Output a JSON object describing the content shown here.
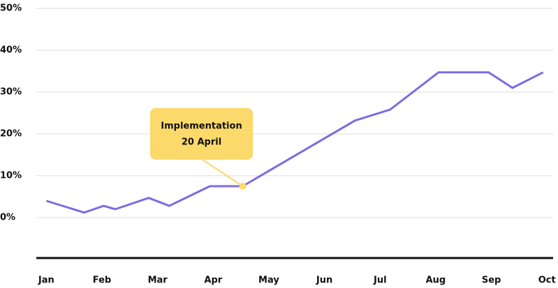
{
  "chart_data": {
    "type": "line",
    "x": [
      0,
      0.68,
      1.03,
      1.24,
      1.84,
      2.21,
      2.94,
      3.53,
      5.55,
      6.18,
      7.05,
      7.95,
      8.38,
      8.93
    ],
    "series": [
      {
        "color": "#7d6be0",
        "values": [
          4,
          1.2,
          2.8,
          2,
          4.7,
          2.8,
          7.5,
          7.5,
          23.2,
          25.8,
          34.7,
          34.7,
          31,
          34.7
        ]
      }
    ],
    "xlim": [
      -0.18,
      9.11
    ],
    "xticks": [
      {
        "value": 0,
        "label": "Jan"
      },
      {
        "value": 1,
        "label": "Feb"
      },
      {
        "value": 2,
        "label": "Mar"
      },
      {
        "value": 3,
        "label": "Apr"
      },
      {
        "value": 4,
        "label": "May"
      },
      {
        "value": 5,
        "label": "Jun"
      },
      {
        "value": 6,
        "label": "Jul"
      },
      {
        "value": 7,
        "label": "Aug"
      },
      {
        "value": 8,
        "label": "Sep"
      },
      {
        "value": 9,
        "label": "Oct"
      }
    ],
    "ylim": [
      -10,
      50
    ],
    "yticks": [
      {
        "value": 0,
        "label": "0%"
      },
      {
        "value": 10,
        "label": "10%"
      },
      {
        "value": 20,
        "label": "20%"
      },
      {
        "value": 30,
        "label": "30%"
      },
      {
        "value": 40,
        "label": "40%"
      },
      {
        "value": 50,
        "label": "50%"
      }
    ],
    "grid": true,
    "annotation": {
      "text": [
        "Implementation",
        "20 April"
      ],
      "x": 3.53,
      "y": 7.5,
      "color": "#fbd96a"
    }
  }
}
